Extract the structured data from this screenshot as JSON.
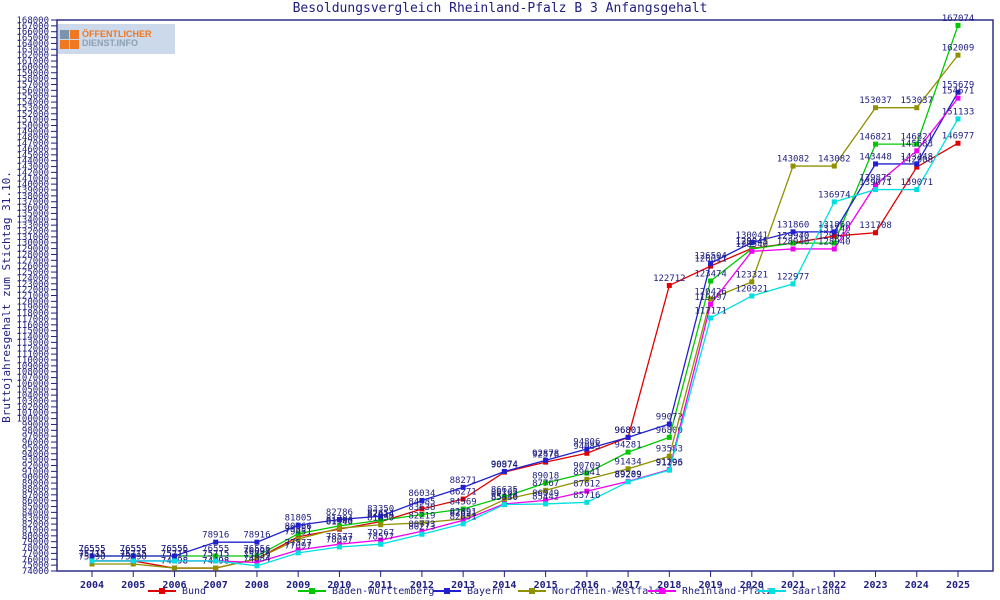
{
  "title": "Besoldungsvergleich Rheinland-Pfalz B 3 Anfangsgehalt",
  "logo": {
    "line1": "ÖFFENTLICHER",
    "line2": "DIENST.INFO"
  },
  "colors": {
    "axis_text": "#202080",
    "background": "#ffffff",
    "logo_bg": "#ccd9ea",
    "logo_orange": "#f07820",
    "logo_slate": "#8ca0b4"
  },
  "chart_data": {
    "type": "line",
    "title": "Besoldungsvergleich Rheinland-Pfalz B 3 Anfangsgehalt",
    "xlabel": "",
    "ylabel": "Bruttojahresgehalt zum Stichtag 31.10.",
    "x": [
      2004,
      2005,
      2006,
      2007,
      2008,
      2009,
      2010,
      2011,
      2012,
      2013,
      2014,
      2015,
      2016,
      2017,
      2018,
      2019,
      2020,
      2021,
      2022,
      2023,
      2024,
      2025
    ],
    "y_axis": {
      "min": 74000,
      "max": 168000,
      "tick_step": 1000
    },
    "grid": false,
    "legend_position": "bottom",
    "point_labels_visible": true,
    "series": [
      {
        "name": "Bund",
        "color": "#e00000",
        "values": [
          75715,
          75715,
          74498,
          74498,
          76091,
          79851,
          81140,
          82414,
          84585,
          86271,
          90874,
          92576,
          94085,
          96801,
          122712,
          126011,
          129045,
          129970,
          131140,
          131708,
          142908,
          146977
        ]
      },
      {
        "name": "Baden-Württemberg",
        "color": "#00c800",
        "values": [
          76555,
          76555,
          76555,
          76555,
          76556,
          80366,
          81704,
          82654,
          83638,
          84569,
          86635,
          89018,
          90709,
          94281,
          96800,
          123474,
          128945,
          129940,
          129940,
          146821,
          146821,
          167074
        ]
      },
      {
        "name": "Bayern",
        "color": "#2020d0",
        "values": [
          76555,
          76555,
          76556,
          78916,
          78916,
          81805,
          82786,
          83350,
          86034,
          88271,
          90974,
          92878,
          94806,
          96801,
          99072,
          126504,
          130041,
          131860,
          131860,
          143448,
          143448,
          155679
        ]
      },
      {
        "name": "Nordrhein-Westfalen",
        "color": "#909000",
        "values": [
          75190,
          75190,
          74498,
          74498,
          76091,
          79451,
          81306,
          81890,
          82219,
          82891,
          86165,
          87767,
          89641,
          91434,
          93583,
          120426,
          123321,
          143082,
          143082,
          153037,
          153037,
          162009
        ]
      },
      {
        "name": "Rheinland-Pfalz",
        "color": "#f000f0",
        "values": [
          75715,
          75715,
          75715,
          75715,
          75459,
          77577,
          78577,
          79267,
          80773,
          82651,
          85446,
          86049,
          87612,
          89289,
          91296,
          119497,
          128540,
          128940,
          128940,
          139875,
          145683,
          154671
        ]
      },
      {
        "name": "Saarland",
        "color": "#00e0e0",
        "values": [
          75715,
          75715,
          75715,
          75715,
          74884,
          77097,
          78097,
          78577,
          80273,
          82051,
          85330,
          85442,
          85716,
          89209,
          91195,
          117171,
          120921,
          122977,
          136974,
          139071,
          139071,
          151133
        ]
      }
    ]
  }
}
